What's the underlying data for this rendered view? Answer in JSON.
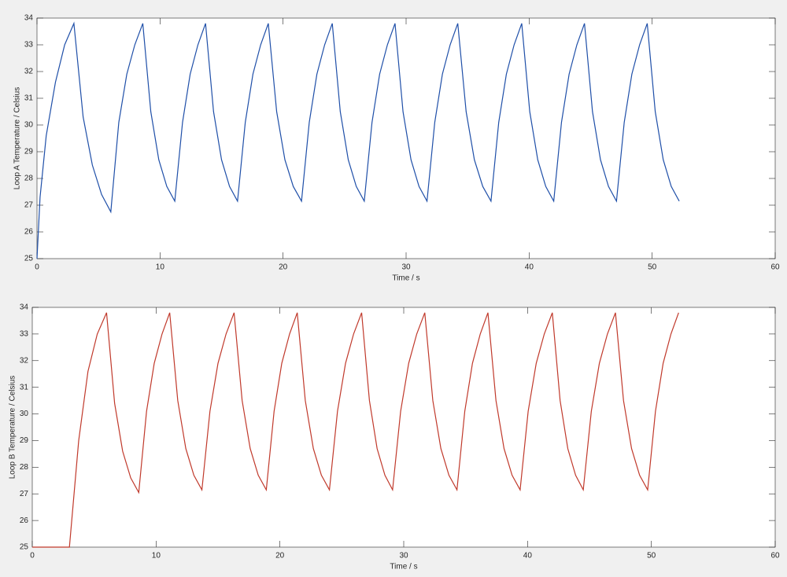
{
  "chart_data": [
    {
      "type": "line",
      "x_label": "Time / s",
      "y_label": "Loop A Temperature / Celsius",
      "xlim": [
        0,
        60
      ],
      "xticks": [
        0,
        10,
        20,
        30,
        40,
        50,
        60
      ],
      "ylim": [
        25,
        34
      ],
      "yticks": [
        25,
        26,
        27,
        28,
        29,
        30,
        31,
        32,
        33,
        34
      ],
      "x": [
        0,
        0.25,
        0.75,
        1.5,
        2.25,
        3.0,
        3.75,
        4.5,
        5.25,
        6.0,
        6.65,
        7.3,
        7.95,
        8.6,
        9.25,
        9.9,
        10.55,
        11.2,
        11.83,
        12.45,
        13.08,
        13.7,
        14.35,
        15.0,
        15.65,
        16.3,
        16.93,
        17.55,
        18.18,
        18.8,
        19.48,
        20.15,
        20.83,
        21.5,
        22.13,
        22.75,
        23.38,
        24.0,
        24.65,
        25.3,
        25.95,
        26.6,
        27.23,
        27.85,
        28.48,
        29.1,
        29.75,
        30.4,
        31.05,
        31.7,
        32.33,
        32.95,
        33.58,
        34.2,
        34.88,
        35.55,
        36.23,
        36.9,
        37.53,
        38.15,
        38.78,
        39.4,
        40.05,
        40.7,
        41.35,
        42.0,
        42.63,
        43.25,
        43.88,
        44.5,
        45.15,
        45.8,
        46.45,
        47.1,
        47.73,
        48.35,
        48.98,
        49.6,
        50.25,
        50.9,
        51.55,
        52.2
      ],
      "series": [
        {
          "color": "#1f4fa8",
          "values": [
            25,
            27.3,
            29.6,
            31.6,
            33.0,
            33.8,
            30.3,
            28.5,
            27.4,
            26.75,
            30.1,
            31.9,
            33.0,
            33.8,
            30.5,
            28.7,
            27.7,
            27.15,
            30.1,
            31.9,
            33.0,
            33.8,
            30.5,
            28.7,
            27.7,
            27.15,
            30.1,
            31.9,
            33.0,
            33.8,
            30.5,
            28.7,
            27.7,
            27.15,
            30.1,
            31.9,
            33.0,
            33.8,
            30.5,
            28.7,
            27.7,
            27.15,
            30.1,
            31.9,
            33.0,
            33.8,
            30.5,
            28.7,
            27.7,
            27.15,
            30.1,
            31.9,
            33.0,
            33.8,
            30.5,
            28.7,
            27.7,
            27.15,
            30.1,
            31.9,
            33.0,
            33.8,
            30.5,
            28.7,
            27.7,
            27.15,
            30.1,
            31.9,
            33.0,
            33.8,
            30.5,
            28.7,
            27.7,
            27.15,
            30.1,
            31.9,
            33.0,
            33.8,
            30.5,
            28.7,
            27.7,
            27.15
          ]
        }
      ]
    },
    {
      "type": "line",
      "x_label": "Time / s",
      "y_label": "Loop B Temperature / Celsius",
      "xlim": [
        0,
        60
      ],
      "xticks": [
        0,
        10,
        20,
        30,
        40,
        50,
        60
      ],
      "ylim": [
        25,
        34
      ],
      "yticks": [
        25,
        26,
        27,
        28,
        29,
        30,
        31,
        32,
        33,
        34
      ],
      "x": [
        0,
        3.0,
        3.75,
        4.5,
        5.25,
        6.0,
        6.65,
        7.3,
        7.95,
        8.6,
        9.23,
        9.85,
        10.48,
        11.1,
        11.75,
        12.4,
        13.05,
        13.7,
        14.35,
        15.0,
        15.65,
        16.3,
        16.95,
        17.6,
        18.25,
        18.9,
        19.53,
        20.15,
        20.78,
        21.4,
        22.05,
        22.7,
        23.35,
        24.0,
        24.65,
        25.3,
        25.95,
        26.6,
        27.23,
        27.85,
        28.48,
        29.1,
        29.75,
        30.4,
        31.05,
        31.7,
        32.35,
        33.0,
        33.65,
        34.3,
        34.93,
        35.55,
        36.18,
        36.8,
        37.45,
        38.1,
        38.75,
        39.4,
        40.05,
        40.7,
        41.35,
        42.0,
        42.63,
        43.25,
        43.88,
        44.5,
        45.15,
        45.8,
        46.45,
        47.1,
        47.75,
        48.4,
        49.05,
        49.7,
        50.33,
        50.95,
        51.58,
        52.2
      ],
      "series": [
        {
          "color": "#c0392b",
          "values": [
            25,
            25,
            29.0,
            31.6,
            33.0,
            33.8,
            30.4,
            28.6,
            27.6,
            27.05,
            30.1,
            31.9,
            33.0,
            33.8,
            30.5,
            28.7,
            27.7,
            27.15,
            30.1,
            31.9,
            33.0,
            33.8,
            30.5,
            28.7,
            27.7,
            27.15,
            30.1,
            31.9,
            33.0,
            33.8,
            30.5,
            28.7,
            27.7,
            27.15,
            30.1,
            31.9,
            33.0,
            33.8,
            30.5,
            28.7,
            27.7,
            27.15,
            30.1,
            31.9,
            33.0,
            33.8,
            30.5,
            28.7,
            27.7,
            27.15,
            30.1,
            31.9,
            33.0,
            33.8,
            30.5,
            28.7,
            27.7,
            27.15,
            30.1,
            31.9,
            33.0,
            33.8,
            30.5,
            28.7,
            27.7,
            27.15,
            30.1,
            31.9,
            33.0,
            33.8,
            30.5,
            28.7,
            27.7,
            27.15,
            30.1,
            31.9,
            33.0,
            33.8
          ]
        }
      ]
    }
  ]
}
